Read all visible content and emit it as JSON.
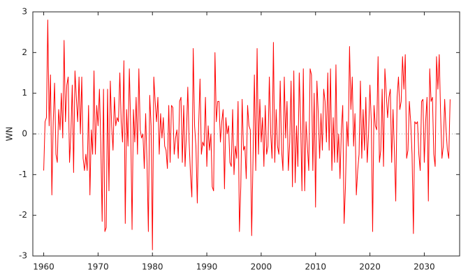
{
  "chart_data": {
    "type": "line",
    "ylabel": "WN",
    "color": "#ff0000",
    "zeroline": true,
    "xlim": [
      1958,
      2036.5
    ],
    "ylim": [
      -3,
      3
    ],
    "xticks": [
      1960,
      1970,
      1980,
      1990,
      2000,
      2010,
      2020,
      2030
    ],
    "yticks": [
      -3,
      -2,
      -1,
      0,
      1,
      2,
      3
    ],
    "x": [
      1960,
      1960.25,
      1960.5,
      1960.75,
      1961,
      1961.25,
      1961.5,
      1961.75,
      1962,
      1962.25,
      1962.5,
      1962.75,
      1963,
      1963.25,
      1963.5,
      1963.75,
      1964,
      1964.25,
      1964.5,
      1964.75,
      1965,
      1965.25,
      1965.5,
      1965.75,
      1966,
      1966.25,
      1966.5,
      1966.75,
      1967,
      1967.25,
      1967.5,
      1967.75,
      1968,
      1968.25,
      1968.5,
      1968.75,
      1969,
      1969.25,
      1969.5,
      1969.75,
      1970,
      1970.25,
      1970.5,
      1970.75,
      1971,
      1971.25,
      1971.5,
      1971.75,
      1972,
      1972.25,
      1972.5,
      1972.75,
      1973,
      1973.25,
      1973.5,
      1973.75,
      1974,
      1974.25,
      1974.5,
      1974.75,
      1975,
      1975.25,
      1975.5,
      1975.75,
      1976,
      1976.25,
      1976.5,
      1976.75,
      1977,
      1977.25,
      1977.5,
      1977.75,
      1978,
      1978.25,
      1978.5,
      1978.75,
      1979,
      1979.25,
      1979.5,
      1979.75,
      1980,
      1980.25,
      1980.5,
      1980.75,
      1981,
      1981.25,
      1981.5,
      1981.75,
      1982,
      1982.25,
      1982.5,
      1982.75,
      1983,
      1983.25,
      1983.5,
      1983.75,
      1984,
      1984.25,
      1984.5,
      1984.75,
      1985,
      1985.25,
      1985.5,
      1985.75,
      1986,
      1986.25,
      1986.5,
      1986.75,
      1987,
      1987.25,
      1987.5,
      1987.75,
      1988,
      1988.25,
      1988.5,
      1988.75,
      1989,
      1989.25,
      1989.5,
      1989.75,
      1990,
      1990.25,
      1990.5,
      1990.75,
      1991,
      1991.25,
      1991.5,
      1991.75,
      1992,
      1992.25,
      1992.5,
      1992.75,
      1993,
      1993.25,
      1993.5,
      1993.75,
      1994,
      1994.25,
      1994.5,
      1994.75,
      1995,
      1995.25,
      1995.5,
      1995.75,
      1996,
      1996.25,
      1996.5,
      1996.75,
      1997,
      1997.25,
      1997.5,
      1997.75,
      1998,
      1998.25,
      1998.5,
      1998.75,
      1999,
      1999.25,
      1999.5,
      1999.75,
      2000,
      2000.25,
      2000.5,
      2000.75,
      2001,
      2001.25,
      2001.5,
      2001.75,
      2002,
      2002.25,
      2002.5,
      2002.75,
      2003,
      2003.25,
      2003.5,
      2003.75,
      2004,
      2004.25,
      2004.5,
      2004.75,
      2005,
      2005.25,
      2005.5,
      2005.75,
      2006,
      2006.25,
      2006.5,
      2006.75,
      2007,
      2007.25,
      2007.5,
      2007.75,
      2008,
      2008.25,
      2008.5,
      2008.75,
      2009,
      2009.25,
      2009.5,
      2009.75,
      2010,
      2010.25,
      2010.5,
      2010.75,
      2011,
      2011.25,
      2011.5,
      2011.75,
      2012,
      2012.25,
      2012.5,
      2012.75,
      2013,
      2013.25,
      2013.5,
      2013.75,
      2014,
      2014.25,
      2014.5,
      2014.75,
      2015,
      2015.25,
      2015.5,
      2015.75,
      2016,
      2016.25,
      2016.5,
      2016.75,
      2017,
      2017.25,
      2017.5,
      2017.75,
      2018,
      2018.25,
      2018.5,
      2018.75,
      2019,
      2019.25,
      2019.5,
      2019.75,
      2020,
      2020.25,
      2020.5,
      2020.75,
      2021,
      2021.25,
      2021.5,
      2021.75,
      2022,
      2022.25,
      2022.5,
      2022.75,
      2023,
      2023.25,
      2023.5,
      2023.75,
      2024,
      2024.25,
      2024.5,
      2024.75,
      2025,
      2025.25,
      2025.5,
      2025.75,
      2026,
      2026.25,
      2026.5,
      2026.75,
      2027,
      2027.25,
      2027.5,
      2027.75,
      2028,
      2028.25,
      2028.5,
      2028.75,
      2029,
      2029.25,
      2029.5,
      2029.75,
      2030,
      2030.25,
      2030.5,
      2030.75,
      2031,
      2031.25,
      2031.5,
      2031.75,
      2032,
      2032.25,
      2032.5,
      2032.75,
      2033,
      2033.25,
      2033.5,
      2033.75,
      2034,
      2034.25,
      2034.5,
      2034.75
    ],
    "values": [
      -0.9,
      0.3,
      0.4,
      2.8,
      0.2,
      1.45,
      -1.5,
      0.3,
      1.25,
      -0.5,
      -0.7,
      0.6,
      0.1,
      1.0,
      -0.1,
      2.3,
      0.3,
      1.2,
      1.4,
      -0.7,
      0.0,
      1.2,
      -0.95,
      1.55,
      0.9,
      0.3,
      1.4,
      0.0,
      1.4,
      -0.6,
      -0.9,
      -0.5,
      -0.9,
      0.7,
      -1.5,
      0.1,
      -0.5,
      1.55,
      -0.5,
      0.7,
      0.2,
      1.1,
      -0.2,
      -2.15,
      1.1,
      -2.4,
      -2.3,
      1.1,
      -1.4,
      1.3,
      0.2,
      -0.4,
      0.9,
      0.2,
      0.4,
      0.3,
      1.5,
      0.3,
      -0.2,
      1.8,
      -2.2,
      0.6,
      -0.3,
      1.6,
      0.2,
      -2.35,
      0.6,
      -0.2,
      0.9,
      -0.5,
      1.6,
      0.1,
      -0.1,
      0.0,
      -0.85,
      0.5,
      -0.7,
      -2.4,
      0.95,
      0.2,
      -2.85,
      1.4,
      0.8,
      0.3,
      0.9,
      -0.5,
      0.5,
      -0.1,
      0.4,
      -0.3,
      -0.4,
      -0.85,
      0.7,
      -0.7,
      0.7,
      0.65,
      -0.5,
      -0.1,
      0.1,
      -0.6,
      0.8,
      0.9,
      -0.7,
      0.7,
      -0.8,
      0.0,
      1.15,
      -0.2,
      -1.0,
      -1.55,
      2.1,
      0.2,
      -0.3,
      -1.7,
      0.2,
      1.35,
      -0.5,
      -0.2,
      -0.3,
      0.9,
      -0.8,
      0.2,
      -0.4,
      0.0,
      -1.3,
      -1.4,
      2.0,
      0.3,
      0.8,
      0.8,
      -0.2,
      0.3,
      0.6,
      -1.35,
      0.4,
      0.0,
      0.2,
      -0.7,
      -0.8,
      0.6,
      -1.0,
      -0.3,
      -0.6,
      0.8,
      -2.4,
      -1.3,
      0.85,
      -0.4,
      -0.3,
      -1.1,
      0.7,
      0.2,
      0.1,
      -2.5,
      -0.6,
      1.45,
      -0.9,
      2.1,
      -0.5,
      0.85,
      -0.2,
      0.4,
      -0.8,
      0.7,
      -0.5,
      -0.3,
      1.4,
      0.0,
      -0.6,
      2.25,
      -0.7,
      0.6,
      -0.3,
      -0.5,
      1.3,
      -0.4,
      -0.9,
      1.4,
      -0.1,
      0.8,
      -0.9,
      -0.2,
      1.3,
      -1.3,
      1.55,
      -1.2,
      0.2,
      -0.8,
      1.5,
      0.3,
      -1.4,
      1.6,
      -1.4,
      0.3,
      -0.3,
      -0.9,
      1.6,
      1.45,
      -0.9,
      1.0,
      -1.8,
      1.3,
      0.5,
      -0.6,
      0.5,
      -0.4,
      1.1,
      0.8,
      -0.2,
      1.5,
      -0.4,
      1.6,
      -0.9,
      0.4,
      -0.7,
      1.7,
      -0.7,
      0.0,
      -1.1,
      0.1,
      0.7,
      -2.2,
      -1.3,
      0.3,
      -0.3,
      2.15,
      0.6,
      1.4,
      -0.3,
      0.5,
      -1.5,
      -0.9,
      -0.5,
      1.3,
      -0.6,
      0.6,
      -0.4,
      0.9,
      -0.7,
      0.0,
      1.2,
      0.3,
      -2.4,
      0.7,
      0.2,
      0.1,
      1.9,
      -0.7,
      -0.4,
      1.1,
      -0.8,
      1.6,
      1.0,
      0.4,
      0.9,
      1.1,
      -0.7,
      0.6,
      -0.4,
      -1.65,
      0.9,
      1.4,
      0.6,
      0.8,
      1.9,
      1.1,
      1.95,
      -0.6,
      -0.4,
      0.8,
      0.3,
      -0.5,
      -2.45,
      0.3,
      0.25,
      0.3,
      -0.5,
      -0.9,
      0.8,
      0.85,
      -0.7,
      0.3,
      0.9,
      -1.65,
      1.6,
      0.8,
      0.9,
      -0.5,
      -0.8,
      1.9,
      1.1,
      1.95,
      0.5,
      -0.6,
      -0.3,
      0.85,
      0.1,
      -0.4,
      -0.6,
      0.85
    ]
  }
}
